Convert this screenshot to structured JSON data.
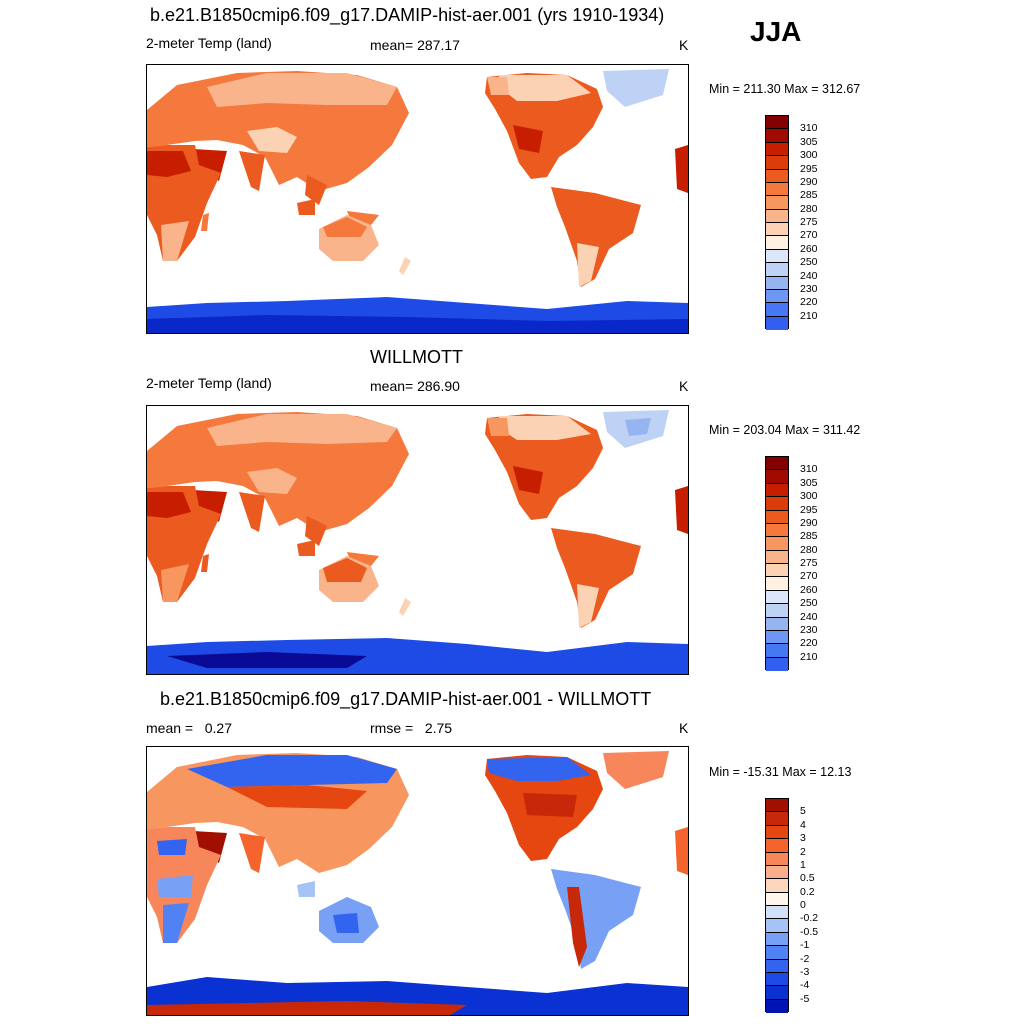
{
  "season": "JJA",
  "colors": {
    "abs": [
      "#0a0a96",
      "#0a28c8",
      "#1e4be6",
      "#325ff0",
      "#4678f5",
      "#6e96f5",
      "#96b4f0",
      "#bed2f5",
      "#dce6fa",
      "#fff0e1",
      "#fcd2b4",
      "#fab48c",
      "#f7965f",
      "#f5783c",
      "#eb5a1e",
      "#dc3c0a",
      "#c81e00",
      "#a00a00",
      "#820000"
    ],
    "diff": [
      "#00008c",
      "#0014b4",
      "#0a32d2",
      "#1e4be6",
      "#3264f0",
      "#5082f5",
      "#78a0f5",
      "#a5c3f5",
      "#d2e1fa",
      "#fff5eb",
      "#fcd7be",
      "#faaf8c",
      "#f7875a",
      "#f5642d",
      "#e6460f",
      "#c8280a",
      "#a00f00",
      "#820000"
    ]
  },
  "chart_data": [
    {
      "type": "heatmap",
      "title": "b.e21.B1850cmip6.f09_g17.DAMIP-hist-aer.001 (yrs 1910-1934)",
      "left_label": "2-meter Temp (land)",
      "center_label": "mean= 287.17",
      "right_label": "K",
      "minmax": "Min = 211.30 Max = 312.67",
      "colorbar_ticks": [
        "310",
        "305",
        "300",
        "295",
        "290",
        "285",
        "280",
        "275",
        "270",
        "260",
        "250",
        "240",
        "230",
        "220",
        "210"
      ]
    },
    {
      "type": "heatmap",
      "title": "WILLMOTT",
      "left_label": "2-meter Temp (land)",
      "center_label": "mean= 286.90",
      "right_label": "K",
      "minmax": "Min = 203.04 Max = 311.42",
      "colorbar_ticks": [
        "310",
        "305",
        "300",
        "295",
        "290",
        "285",
        "280",
        "275",
        "270",
        "260",
        "250",
        "240",
        "230",
        "220",
        "210"
      ]
    },
    {
      "type": "heatmap",
      "title": "b.e21.B1850cmip6.f09_g17.DAMIP-hist-aer.001 - WILLMOTT",
      "left_label": "mean =   0.27",
      "center_label": "rmse =   2.75",
      "right_label": "K",
      "minmax": "Min = -15.31 Max =  12.13",
      "colorbar_ticks": [
        "5",
        "4",
        "3",
        "2",
        "1",
        "0.5",
        "0.2",
        "0",
        "-0.2",
        "-0.5",
        "-1",
        "-2",
        "-3",
        "-4",
        "-5"
      ]
    }
  ]
}
